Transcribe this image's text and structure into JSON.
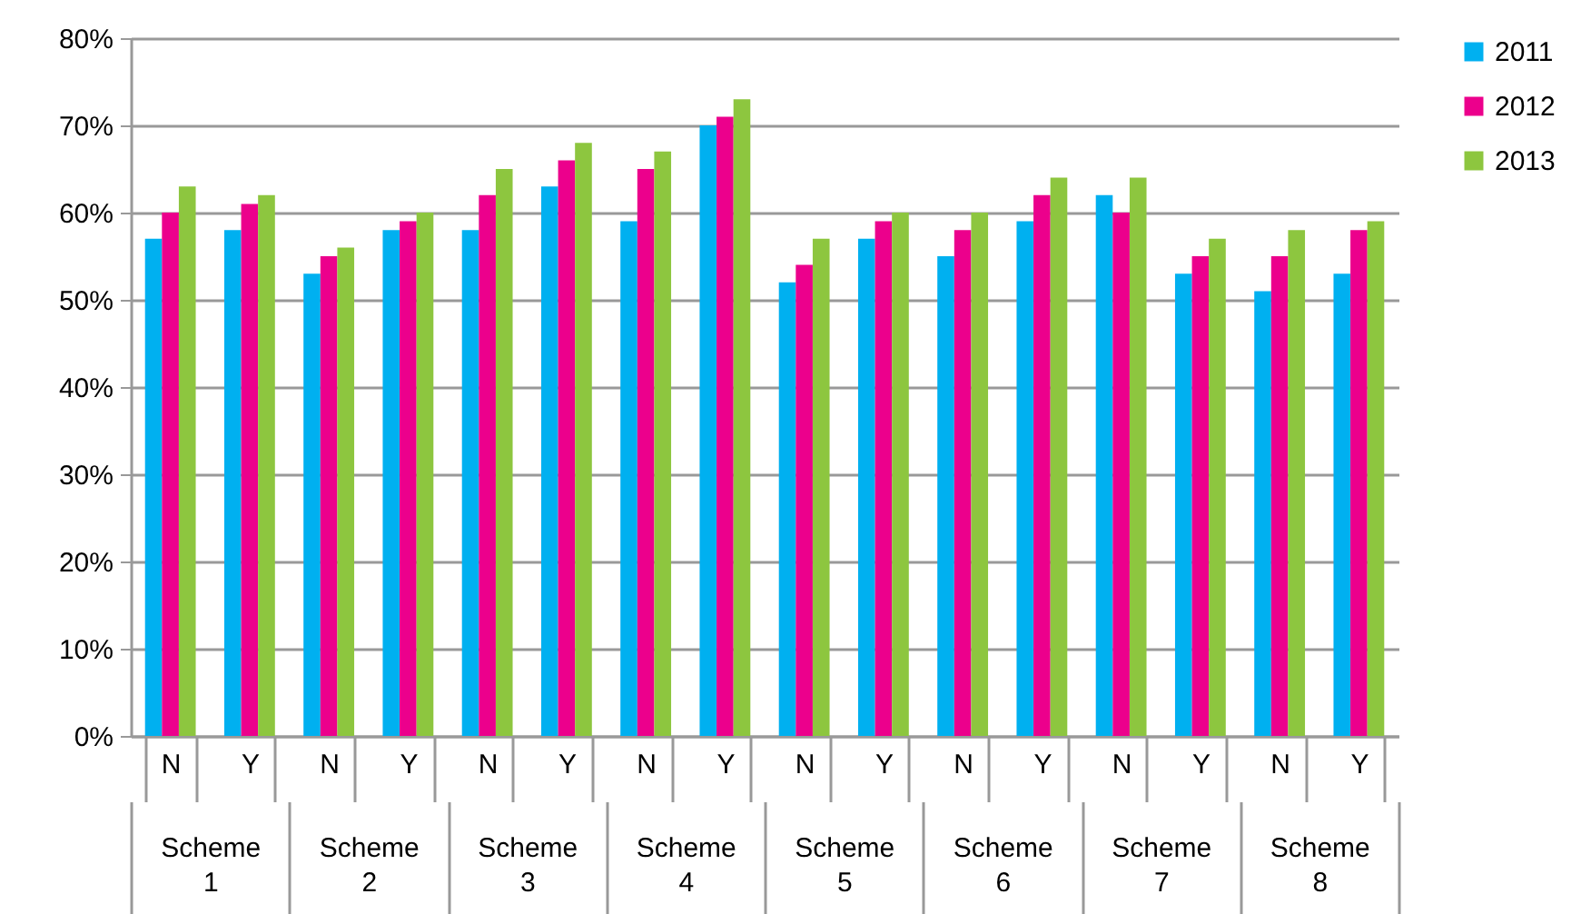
{
  "chart_data": {
    "type": "bar",
    "categories": [
      "N",
      "Y",
      "N",
      "Y",
      "N",
      "Y",
      "N",
      "Y",
      "N",
      "Y",
      "N",
      "Y",
      "N",
      "Y",
      "N",
      "Y"
    ],
    "series": [
      {
        "name": "2011",
        "color": "#00b0f0",
        "values": [
          57,
          58,
          53,
          58,
          58,
          63,
          59,
          70,
          52,
          57,
          55,
          59,
          62,
          53,
          51,
          53
        ]
      },
      {
        "name": "2012",
        "color": "#ec008c",
        "values": [
          60,
          61,
          55,
          59,
          62,
          66,
          65,
          71,
          54,
          59,
          58,
          62,
          60,
          55,
          55,
          58
        ]
      },
      {
        "name": "2013",
        "color": "#8dc63f",
        "values": [
          63,
          62,
          56,
          60,
          65,
          68,
          67,
          73,
          57,
          60,
          60,
          64,
          64,
          57,
          58,
          59
        ]
      }
    ],
    "annotations": [
      "Scheme 1",
      "Scheme 2",
      "Scheme 3",
      "Scheme 4",
      "Scheme 5",
      "Scheme 6",
      "Scheme 7",
      "Scheme 8"
    ],
    "ylim": [
      0,
      80
    ],
    "yticks": [
      {
        "value": 0,
        "label": "0%"
      },
      {
        "value": 10,
        "label": "10%"
      },
      {
        "value": 20,
        "label": "20%"
      },
      {
        "value": 30,
        "label": "30%"
      },
      {
        "value": 40,
        "label": "40%"
      },
      {
        "value": 50,
        "label": "50%"
      },
      {
        "value": 60,
        "label": "60%"
      },
      {
        "value": 70,
        "label": "70%"
      },
      {
        "value": 80,
        "label": "80%"
      }
    ],
    "grid": "y",
    "legend": "right"
  }
}
